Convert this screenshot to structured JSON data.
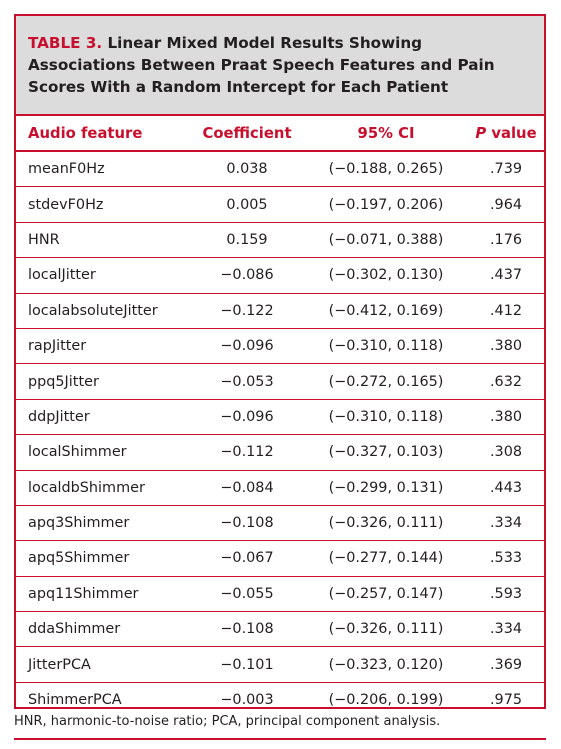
{
  "table": {
    "label": "TABLE 3.",
    "title": "Linear Mixed Model Results Showing Associations Between Praat Speech Features and Pain Scores With a Random Intercept for Each Patient",
    "headers": {
      "feature": "Audio feature",
      "coefficient": "Coefficient",
      "ci": "95% CI",
      "p_letter": "P",
      "p_rest": " value"
    },
    "rows": [
      {
        "feature": "meanF0Hz",
        "coefficient": "0.038",
        "ci": "(−0.188, 0.265)",
        "p": ".739"
      },
      {
        "feature": "stdevF0Hz",
        "coefficient": "0.005",
        "ci": "(−0.197, 0.206)",
        "p": ".964"
      },
      {
        "feature": "HNR",
        "coefficient": "0.159",
        "ci": "(−0.071, 0.388)",
        "p": ".176"
      },
      {
        "feature": "localJitter",
        "coefficient": "−0.086",
        "ci": "(−0.302, 0.130)",
        "p": ".437"
      },
      {
        "feature": "localabsoluteJitter",
        "coefficient": "−0.122",
        "ci": "(−0.412, 0.169)",
        "p": ".412"
      },
      {
        "feature": "rapJitter",
        "coefficient": "−0.096",
        "ci": "(−0.310, 0.118)",
        "p": ".380"
      },
      {
        "feature": "ppq5Jitter",
        "coefficient": "−0.053",
        "ci": "(−0.272, 0.165)",
        "p": ".632"
      },
      {
        "feature": "ddpJitter",
        "coefficient": "−0.096",
        "ci": "(−0.310, 0.118)",
        "p": ".380"
      },
      {
        "feature": "localShimmer",
        "coefficient": "−0.112",
        "ci": "(−0.327, 0.103)",
        "p": ".308"
      },
      {
        "feature": "localdbShimmer",
        "coefficient": "−0.084",
        "ci": "(−0.299, 0.131)",
        "p": ".443"
      },
      {
        "feature": "apq3Shimmer",
        "coefficient": "−0.108",
        "ci": "(−0.326, 0.111)",
        "p": ".334"
      },
      {
        "feature": "apq5Shimmer",
        "coefficient": "−0.067",
        "ci": "(−0.277, 0.144)",
        "p": ".533"
      },
      {
        "feature": "apq11Shimmer",
        "coefficient": "−0.055",
        "ci": "(−0.257, 0.147)",
        "p": ".593"
      },
      {
        "feature": "ddaShimmer",
        "coefficient": "−0.108",
        "ci": "(−0.326, 0.111)",
        "p": ".334"
      },
      {
        "feature": "JitterPCA",
        "coefficient": "−0.101",
        "ci": "(−0.323, 0.120)",
        "p": ".369"
      },
      {
        "feature": "ShimmerPCA",
        "coefficient": "−0.003",
        "ci": "(−0.206, 0.199)",
        "p": ".975"
      }
    ],
    "footnote": "HNR, harmonic-to-noise ratio; PCA, principal component analysis."
  },
  "colors": {
    "accent": "#c8102e",
    "caption_background": "#dcdcdc",
    "text": "#231f20"
  }
}
